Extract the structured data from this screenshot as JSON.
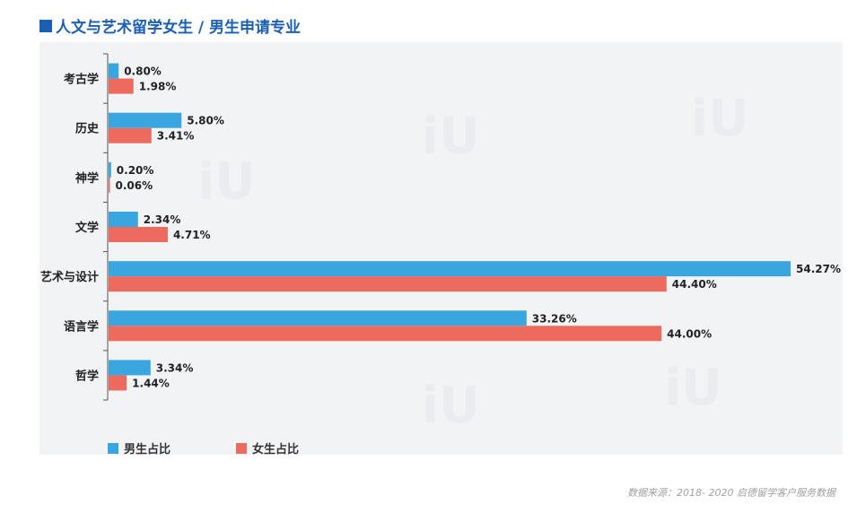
{
  "header": {
    "title": "人文与艺术留学女生 / 男生申请专业"
  },
  "footer": {
    "source": "数据来源：2018- 2020 启德留学客户服务数据"
  },
  "colors": {
    "title": "#1a5fb4",
    "male": "#3aa6df",
    "female": "#ec6b5e",
    "axis": "#555555",
    "panel": "#f2f3f5",
    "label": "#222222"
  },
  "icons": {
    "title_mark": "square-marker-icon"
  },
  "chart_data": {
    "type": "bar",
    "orientation": "horizontal",
    "title": "人文与艺术留学女生 / 男生申请专业",
    "categories": [
      "考古学",
      "历史",
      "神学",
      "文学",
      "艺术与设计",
      "语言学",
      "哲学"
    ],
    "series": [
      {
        "name": "男生占比",
        "values": [
          0.8,
          5.8,
          0.2,
          2.34,
          54.27,
          33.26,
          3.34
        ],
        "labels": [
          "0.80%",
          "5.80%",
          "0.20%",
          "2.34%",
          "54.27%",
          "33.26%",
          "3.34%"
        ],
        "color": "#3aa6df"
      },
      {
        "name": "女生占比",
        "values": [
          1.98,
          3.41,
          0.06,
          4.71,
          44.4,
          44.0,
          1.44
        ],
        "labels": [
          "1.98%",
          "3.41%",
          "0.06%",
          "4.71%",
          "44.40%",
          "44.00%",
          "1.44%"
        ],
        "color": "#ec6b5e"
      }
    ],
    "xlim": [
      0,
      54.27
    ],
    "grid": false,
    "legend_position": "bottom-left"
  }
}
